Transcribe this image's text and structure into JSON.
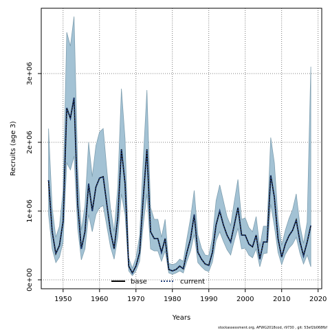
{
  "chart_data": {
    "type": "line",
    "title": "",
    "xlabel": "Years",
    "ylabel": "Recruits (age 3)",
    "xlim": [
      1944,
      2021
    ],
    "ylim": [
      -130000,
      3950000
    ],
    "x_ticks": [
      1950,
      1960,
      1970,
      1980,
      1990,
      2000,
      2010,
      2020
    ],
    "x_tick_labels": [
      "1950",
      "1960",
      "1970",
      "1980",
      "1990",
      "2000",
      "2010",
      "2020"
    ],
    "y_ticks": [
      0,
      1000000,
      2000000,
      3000000
    ],
    "y_tick_labels": [
      "0e+00",
      "1e+06",
      "2e+06",
      "3e+06"
    ],
    "grid": true,
    "legend": {
      "placement": "bottom-center",
      "entries": [
        {
          "label": "base",
          "style": "solid"
        },
        {
          "label": "current",
          "style": "dotted"
        }
      ]
    },
    "footnote": "stockassessment.org, AFWG2018cod, r9730 , git: 53ef2b068fbf",
    "colors": {
      "band_fill": "#a3c2d4",
      "band_stroke": "#7f9fb0",
      "base_line": "#000000",
      "current_line": "#1f3e7a"
    },
    "years": [
      1946,
      1947,
      1948,
      1949,
      1950,
      1951,
      1952,
      1953,
      1954,
      1955,
      1956,
      1957,
      1958,
      1959,
      1960,
      1961,
      1962,
      1963,
      1964,
      1965,
      1966,
      1967,
      1968,
      1969,
      1970,
      1971,
      1972,
      1973,
      1974,
      1975,
      1976,
      1977,
      1978,
      1979,
      1980,
      1981,
      1982,
      1983,
      1984,
      1985,
      1986,
      1987,
      1988,
      1989,
      1990,
      1991,
      1992,
      1993,
      1994,
      1995,
      1996,
      1997,
      1998,
      1999,
      2000,
      2001,
      2002,
      2003,
      2004,
      2005,
      2006,
      2007,
      2008,
      2009,
      2010,
      2011,
      2012,
      2013,
      2014,
      2015,
      2016,
      2017,
      2018
    ],
    "series": [
      {
        "name": "base",
        "values": [
          1450000,
          700000,
          380000,
          500000,
          850000,
          2500000,
          2350000,
          2650000,
          1100000,
          450000,
          700000,
          1400000,
          1000000,
          1350000,
          1480000,
          1500000,
          1100000,
          700000,
          450000,
          900000,
          1900000,
          1400000,
          200000,
          100000,
          200000,
          400000,
          1200000,
          1900000,
          700000,
          600000,
          600000,
          400000,
          600000,
          150000,
          130000,
          150000,
          200000,
          160000,
          400000,
          600000,
          950000,
          400000,
          300000,
          230000,
          210000,
          400000,
          800000,
          1000000,
          800000,
          650000,
          550000,
          800000,
          1050000,
          650000,
          650000,
          520000,
          480000,
          650000,
          300000,
          550000,
          550000,
          1520000,
          1200000,
          600000,
          330000,
          520000,
          640000,
          720000,
          870000,
          560000,
          350000,
          550000,
          790000
        ]
      },
      {
        "name": "current",
        "values": [
          1450000,
          700000,
          380000,
          500000,
          850000,
          2500000,
          2350000,
          2650000,
          1100000,
          450000,
          700000,
          1400000,
          1000000,
          1350000,
          1480000,
          1500000,
          1100000,
          700000,
          450000,
          900000,
          1900000,
          1400000,
          200000,
          100000,
          200000,
          400000,
          1200000,
          1900000,
          700000,
          600000,
          600000,
          400000,
          600000,
          150000,
          130000,
          150000,
          200000,
          160000,
          400000,
          600000,
          950000,
          400000,
          300000,
          230000,
          210000,
          400000,
          800000,
          1000000,
          800000,
          650000,
          550000,
          800000,
          1050000,
          650000,
          650000,
          520000,
          480000,
          650000,
          300000,
          550000,
          550000,
          1520000,
          1200000,
          600000,
          330000,
          520000,
          640000,
          720000,
          870000,
          560000,
          350000,
          550000,
          790000
        ]
      }
    ],
    "ci_lower": [
      950000,
      450000,
      250000,
      330000,
      550000,
      1700000,
      1600000,
      1800000,
      750000,
      290000,
      450000,
      950000,
      700000,
      950000,
      1050000,
      1080000,
      780000,
      480000,
      300000,
      620000,
      1250000,
      950000,
      130000,
      60000,
      130000,
      270000,
      800000,
      1250000,
      450000,
      420000,
      420000,
      270000,
      420000,
      100000,
      80000,
      100000,
      130000,
      100000,
      270000,
      420000,
      660000,
      250000,
      190000,
      140000,
      120000,
      260000,
      570000,
      700000,
      560000,
      440000,
      360000,
      570000,
      750000,
      450000,
      460000,
      360000,
      320000,
      450000,
      190000,
      380000,
      390000,
      1100000,
      780000,
      400000,
      220000,
      370000,
      460000,
      520000,
      620000,
      390000,
      230000,
      360000,
      190000
    ],
    "ci_upper": [
      2200000,
      1050000,
      620000,
      780000,
      1300000,
      3600000,
      3400000,
      3830000,
      1650000,
      720000,
      1080000,
      2000000,
      1500000,
      1950000,
      2150000,
      2200000,
      1600000,
      1050000,
      700000,
      1350000,
      2780000,
      2050000,
      320000,
      170000,
      320000,
      640000,
      1750000,
      2760000,
      1050000,
      880000,
      880000,
      620000,
      880000,
      240000,
      220000,
      240000,
      300000,
      270000,
      600000,
      900000,
      1300000,
      650000,
      460000,
      360000,
      350000,
      610000,
      1150000,
      1380000,
      1150000,
      920000,
      790000,
      1140000,
      1460000,
      880000,
      900000,
      760000,
      700000,
      920000,
      480000,
      780000,
      780000,
      2070000,
      1700000,
      880000,
      500000,
      720000,
      890000,
      1020000,
      1250000,
      800000,
      530000,
      840000,
      3100000
    ]
  }
}
